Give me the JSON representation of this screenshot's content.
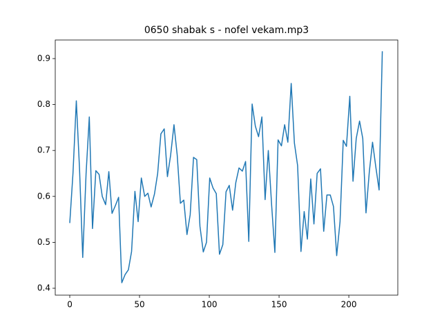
{
  "chart_data": {
    "type": "line",
    "title": "0650 shabak s - nofel vekam.mp3",
    "x": [
      0,
      2.3,
      4.7,
      7,
      9.3,
      11.7,
      14,
      16.3,
      18.7,
      21,
      23.3,
      25.7,
      28,
      30.3,
      32.7,
      35,
      37.3,
      39.7,
      42,
      44.3,
      46.7,
      49,
      51.3,
      53.7,
      56,
      58.3,
      60.7,
      63,
      65.3,
      67.7,
      70,
      72.3,
      74.7,
      77,
      79.3,
      81.7,
      84,
      86.3,
      88.7,
      91,
      93.3,
      95.7,
      98,
      100.3,
      102.7,
      105,
      107.3,
      109.7,
      112,
      114.3,
      116.7,
      119,
      121.3,
      123.7,
      126,
      128.3,
      130.7,
      133,
      135.3,
      137.7,
      140,
      142.3,
      144.7,
      147,
      149.3,
      151.7,
      154,
      156.3,
      158.7,
      161,
      163.3,
      165.7,
      168,
      170.3,
      172.7,
      175,
      177.3,
      179.7,
      182,
      184.3,
      186.7,
      189,
      191.3,
      193.7,
      196,
      198.3,
      200.7,
      203,
      205.3,
      207.7,
      210,
      212.3,
      214.7,
      217,
      219.3,
      221.7,
      224
    ],
    "series": [
      {
        "color": "#1f77b4",
        "values": [
          0.542,
          0.65,
          0.808,
          0.66,
          0.467,
          0.65,
          0.773,
          0.53,
          0.656,
          0.648,
          0.6,
          0.582,
          0.654,
          0.563,
          0.58,
          0.598,
          0.412,
          0.43,
          0.44,
          0.48,
          0.611,
          0.545,
          0.64,
          0.6,
          0.607,
          0.577,
          0.605,
          0.65,
          0.736,
          0.747,
          0.643,
          0.69,
          0.756,
          0.69,
          0.585,
          0.592,
          0.517,
          0.56,
          0.685,
          0.68,
          0.535,
          0.479,
          0.5,
          0.64,
          0.618,
          0.606,
          0.474,
          0.495,
          0.61,
          0.624,
          0.57,
          0.63,
          0.662,
          0.655,
          0.676,
          0.502,
          0.801,
          0.753,
          0.73,
          0.773,
          0.593,
          0.7,
          0.58,
          0.478,
          0.723,
          0.71,
          0.756,
          0.718,
          0.846,
          0.716,
          0.667,
          0.48,
          0.567,
          0.507,
          0.638,
          0.54,
          0.65,
          0.66,
          0.524,
          0.603,
          0.603,
          0.578,
          0.471,
          0.545,
          0.722,
          0.709,
          0.818,
          0.633,
          0.726,
          0.764,
          0.726,
          0.564,
          0.654,
          0.718,
          0.665,
          0.614,
          0.916
        ]
      }
    ],
    "xlim": [
      -10.4,
      235.1
    ],
    "ylim": [
      0.385,
      0.9405
    ],
    "xticks": [
      0,
      50,
      100,
      150,
      200
    ],
    "yticks": [
      0.4,
      0.5,
      0.6,
      0.7,
      0.8,
      0.9
    ]
  }
}
